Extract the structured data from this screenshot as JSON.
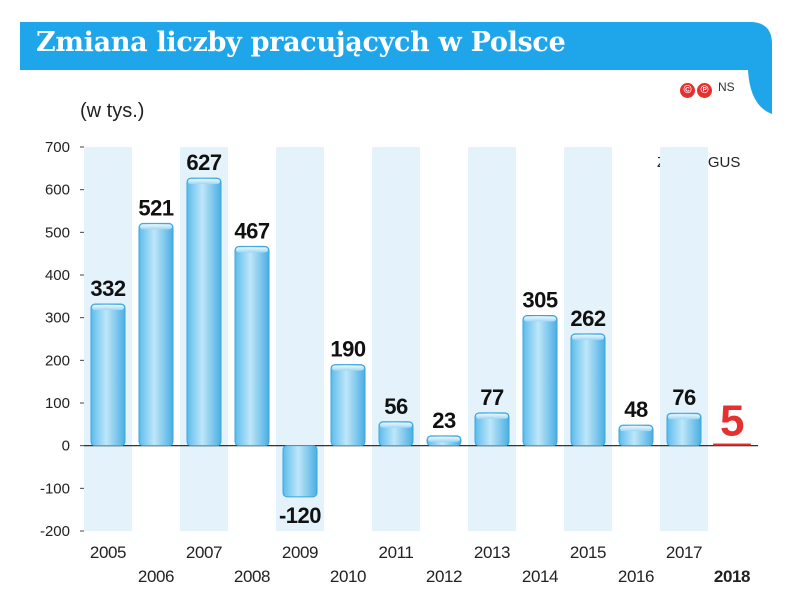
{
  "title": "Zmiana liczby pracujących w Polsce",
  "brand": {
    "copyright_symbol": "©",
    "phonogram_symbol": "℗",
    "initials": "NS"
  },
  "colors": {
    "banner": "#1fa6ea",
    "bar_light": "#d6f0fc",
    "bar_dark": "#58b8ea",
    "band": "#e4f3fb",
    "highlight": "#e53030"
  },
  "chart_data": {
    "type": "bar",
    "ylabel": "(w tys.)",
    "source": "Źródło: GUS",
    "ylim": [
      -200,
      700
    ],
    "yticks": [
      700,
      600,
      500,
      400,
      300,
      200,
      100,
      0,
      -100,
      -200
    ],
    "categories": [
      "2005",
      "2006",
      "2007",
      "2008",
      "2009",
      "2010",
      "2011",
      "2012",
      "2013",
      "2014",
      "2015",
      "2016",
      "2017",
      "2018"
    ],
    "values": [
      332,
      521,
      627,
      467,
      -120,
      190,
      56,
      23,
      77,
      305,
      262,
      48,
      76,
      5
    ],
    "value_labels": [
      "332",
      "521",
      "627",
      "467",
      "-120",
      "190",
      "56",
      "23",
      "77",
      "305",
      "262",
      "48",
      "76",
      "5"
    ],
    "highlight_category": "2018",
    "grid": false
  }
}
